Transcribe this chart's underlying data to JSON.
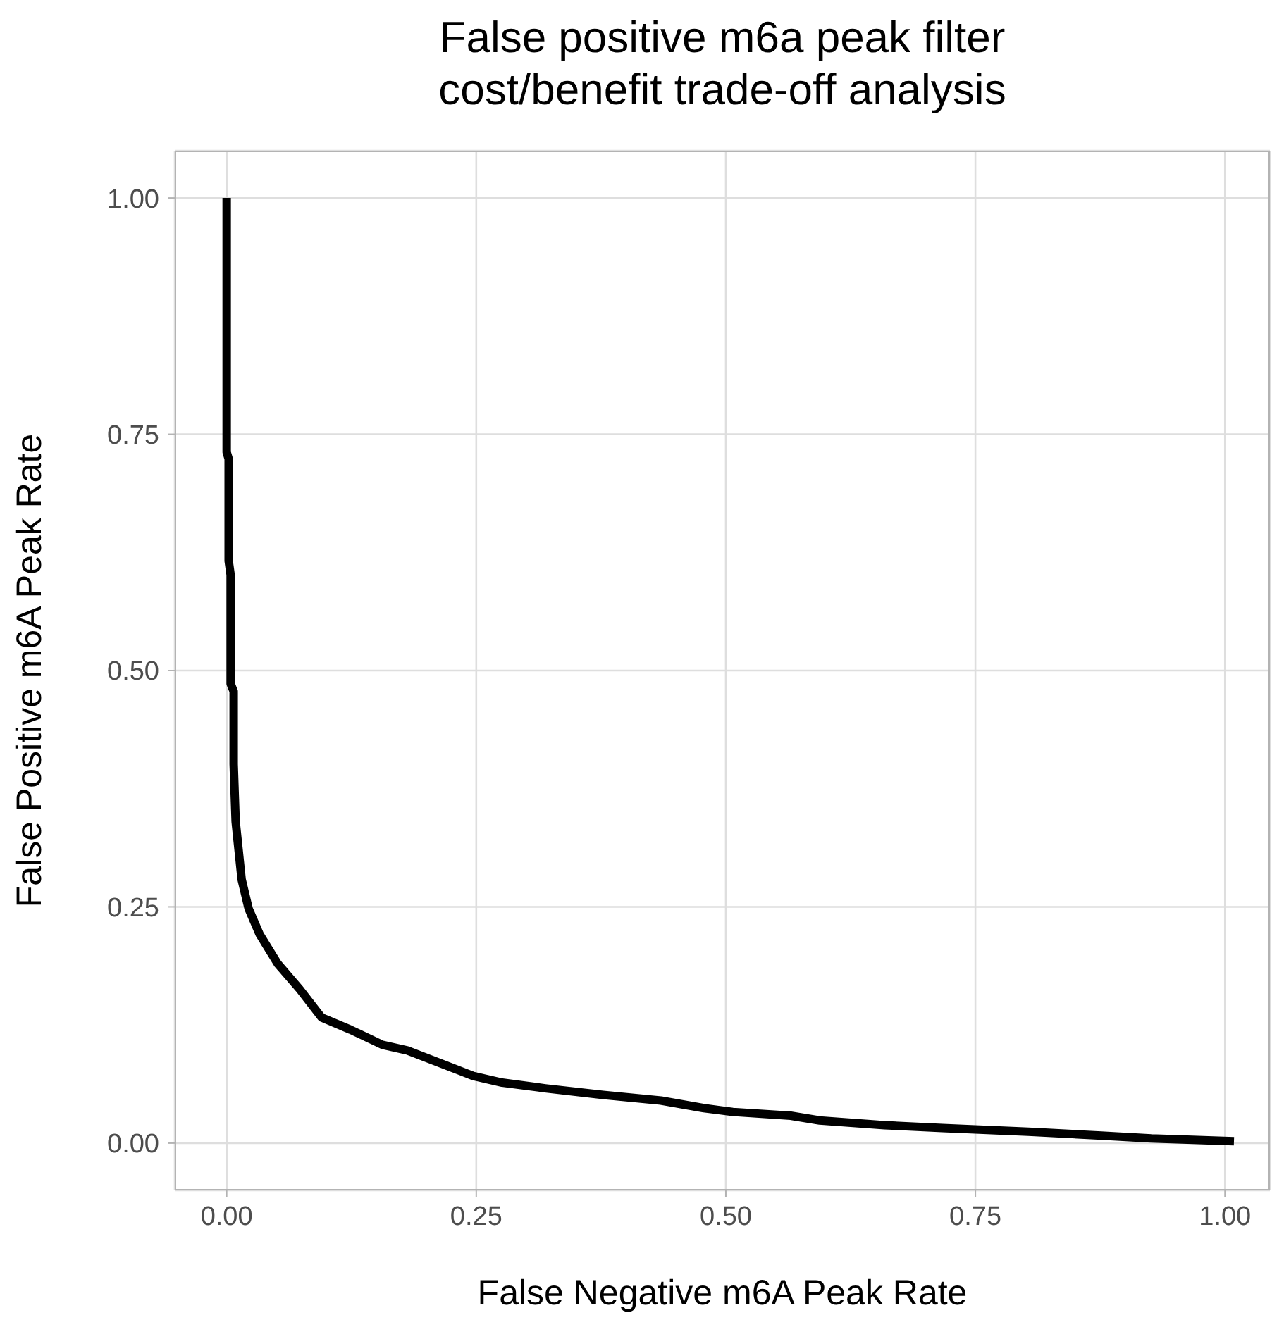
{
  "chart_data": {
    "type": "line",
    "title": "False positive m6a peak filter\ncost/benefit trade-off analysis",
    "xlabel": "False Negative m6A Peak Rate",
    "ylabel": "False Positive m6A Peak Rate",
    "xlim": [
      -0.052,
      1.045
    ],
    "ylim": [
      -0.05,
      1.05
    ],
    "xticks": [
      {
        "value": 0,
        "label": "0.00"
      },
      {
        "value": 0.25,
        "label": "0.25"
      },
      {
        "value": 0.5,
        "label": "0.50"
      },
      {
        "value": 0.75,
        "label": "0.75"
      },
      {
        "value": 1,
        "label": "1.00"
      }
    ],
    "yticks": [
      {
        "value": 0,
        "label": "0.00"
      },
      {
        "value": 0.25,
        "label": "0.25"
      },
      {
        "value": 0.5,
        "label": "0.50"
      },
      {
        "value": 0.75,
        "label": "0.75"
      },
      {
        "value": 1,
        "label": "1.00"
      }
    ],
    "grid": true,
    "legend": false,
    "marker": "none",
    "line_style": "solid",
    "series": [
      {
        "color": "#000000",
        "x": [
          0,
          0,
          0.002,
          0.002,
          0.004,
          0.004,
          0.007,
          0.007,
          0.009,
          0.015,
          0.022,
          0.033,
          0.051,
          0.073,
          0.095,
          0.124,
          0.156,
          0.181,
          0.218,
          0.247,
          0.276,
          0.319,
          0.377,
          0.435,
          0.478,
          0.507,
          0.565,
          0.594,
          0.659,
          0.717,
          0.803,
          0.876,
          0.926,
          1.009
        ],
        "values": [
          1.0,
          0.731,
          0.724,
          0.616,
          0.601,
          0.486,
          0.478,
          0.401,
          0.34,
          0.279,
          0.248,
          0.221,
          0.19,
          0.163,
          0.133,
          0.12,
          0.104,
          0.098,
          0.083,
          0.071,
          0.064,
          0.058,
          0.051,
          0.045,
          0.037,
          0.033,
          0.029,
          0.024,
          0.019,
          0.016,
          0.012,
          0.008,
          0.005,
          0.002
        ]
      }
    ]
  }
}
